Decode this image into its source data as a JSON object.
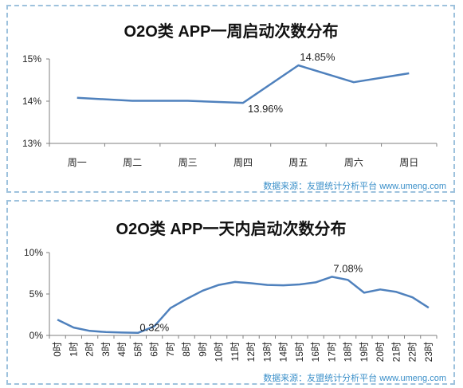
{
  "source_text": "数据来源：友盟统计分析平台 www.umeng.com",
  "colors": {
    "line": "#4f81bd",
    "border": "#9ec2dd",
    "source": "#3a8fc9"
  },
  "chart_data": [
    {
      "type": "line",
      "title": "O2O类 APP一周启动次数分布",
      "categories": [
        "周一",
        "周二",
        "周三",
        "周四",
        "周五",
        "周六",
        "周日"
      ],
      "values": [
        14.08,
        14.01,
        14.01,
        13.96,
        14.85,
        14.45,
        14.66
      ],
      "ylim": [
        13,
        15
      ],
      "yticks": [
        "13%",
        "14%",
        "15%"
      ],
      "ytick_values": [
        13,
        14,
        15
      ],
      "annotations": [
        {
          "index": 3,
          "label": "13.96%"
        },
        {
          "index": 4,
          "label": "14.85%"
        }
      ],
      "grid": false
    },
    {
      "type": "line",
      "title": "O2O类 APP一天内启动次数分布",
      "categories": [
        "0时",
        "1时",
        "2时",
        "3时",
        "4时",
        "5时",
        "6时",
        "7时",
        "8时",
        "9时",
        "10时",
        "11时",
        "12时",
        "13时",
        "14时",
        "15时",
        "16时",
        "17时",
        "18时",
        "19时",
        "20时",
        "21时",
        "22时",
        "23时"
      ],
      "values": [
        1.9,
        0.95,
        0.55,
        0.4,
        0.35,
        0.32,
        1.1,
        3.3,
        4.4,
        5.4,
        6.1,
        6.45,
        6.3,
        6.1,
        6.05,
        6.15,
        6.4,
        7.08,
        6.7,
        5.15,
        5.55,
        5.25,
        4.6,
        3.35
      ],
      "ylim": [
        0,
        10
      ],
      "yticks": [
        "0%",
        "5%",
        "10%"
      ],
      "ytick_values": [
        0,
        5,
        10
      ],
      "annotations": [
        {
          "index": 5,
          "label": "0.32%"
        },
        {
          "index": 17,
          "label": "7.08%"
        }
      ],
      "grid": false
    }
  ]
}
